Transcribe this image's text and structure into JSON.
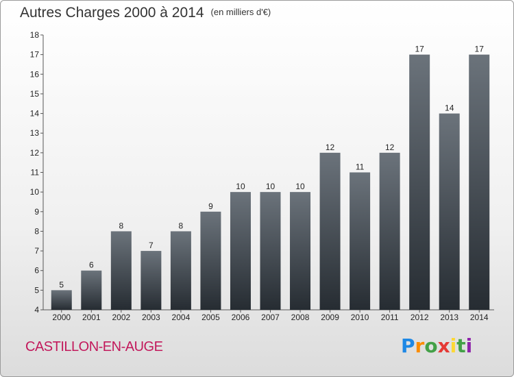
{
  "title": "Autres Charges 2000 à 2014",
  "unit_note": "(en milliers d'€)",
  "commune": "CASTILLON-EN-AUGE",
  "logo": {
    "letters": [
      "P",
      "r",
      "o",
      "x",
      "i",
      "t",
      "i"
    ],
    "colors": [
      "#1e88e5",
      "#fb8c00",
      "#43a047",
      "#e53935",
      "#fdd835",
      "#43a047",
      "#8e24aa"
    ]
  },
  "chart_data": {
    "type": "bar",
    "title": "Autres Charges 2000 à 2014",
    "subtitle": "(en milliers d'€)",
    "xlabel": "",
    "ylabel": "",
    "categories": [
      "2000",
      "2001",
      "2002",
      "2003",
      "2004",
      "2005",
      "2006",
      "2007",
      "2008",
      "2009",
      "2010",
      "2011",
      "2012",
      "2013",
      "2014"
    ],
    "values": [
      5,
      6,
      8,
      7,
      8,
      9,
      10,
      10,
      10,
      12,
      11,
      12,
      17,
      14,
      17
    ],
    "ylim": [
      4,
      18
    ],
    "yticks": [
      4,
      5,
      6,
      7,
      8,
      9,
      10,
      11,
      12,
      13,
      14,
      15,
      16,
      17,
      18
    ],
    "bar_color": "#3a4148",
    "grid": false
  }
}
